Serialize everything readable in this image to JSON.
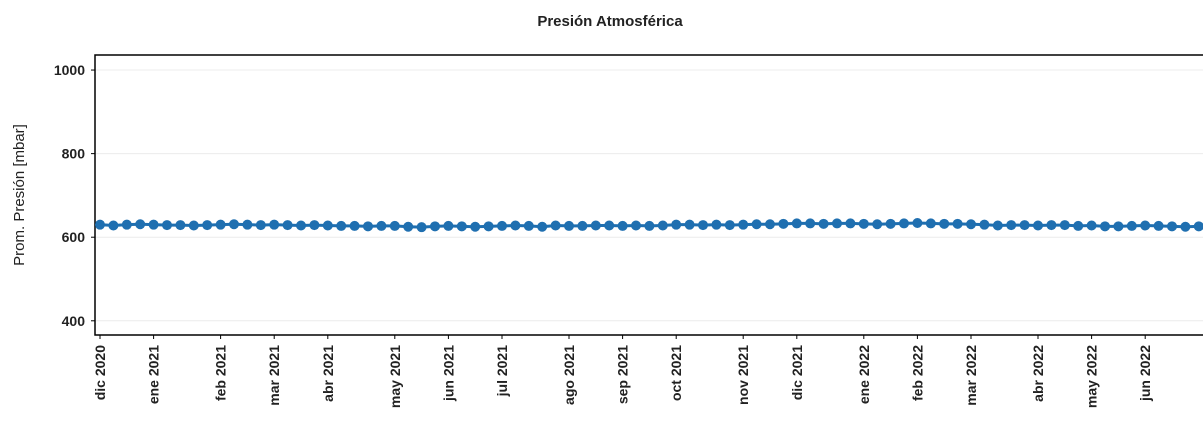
{
  "chart_data": {
    "type": "line",
    "title": "Presión Atmosférica",
    "y_label": "Prom. Presión [mbar]",
    "categories": [
      "dic 2020",
      null,
      null,
      null,
      "ene 2021",
      null,
      null,
      null,
      null,
      "feb 2021",
      null,
      null,
      null,
      "mar 2021",
      null,
      null,
      null,
      "abr 2021",
      null,
      null,
      null,
      null,
      "may 2021",
      null,
      null,
      null,
      "jun 2021",
      null,
      null,
      null,
      "jul 2021",
      null,
      null,
      null,
      null,
      "ago 2021",
      null,
      null,
      null,
      "sep 2021",
      null,
      null,
      null,
      "oct 2021",
      null,
      null,
      null,
      null,
      "nov 2021",
      null,
      null,
      null,
      "dic 2021",
      null,
      null,
      null,
      null,
      "ene 2022",
      null,
      null,
      null,
      "feb 2022",
      null,
      null,
      null,
      "mar 2022",
      null,
      null,
      null,
      null,
      "abr 2022",
      null,
      null,
      null,
      "may 2022",
      null,
      null,
      null,
      "jun 2022",
      null,
      null,
      null,
      null
    ],
    "values": [
      630,
      628,
      630,
      631,
      630,
      629,
      629,
      628,
      629,
      630,
      631,
      630,
      629,
      630,
      629,
      628,
      629,
      628,
      627,
      627,
      626,
      627,
      627,
      625,
      624,
      626,
      627,
      626,
      625,
      626,
      627,
      628,
      627,
      625,
      628,
      627,
      627,
      628,
      628,
      627,
      628,
      627,
      628,
      630,
      630,
      629,
      630,
      629,
      630,
      631,
      631,
      632,
      633,
      633,
      632,
      633,
      633,
      632,
      631,
      632,
      633,
      634,
      633,
      632,
      632,
      631,
      630,
      628,
      629,
      629,
      628,
      629,
      629,
      627,
      628,
      626,
      626,
      627,
      628,
      627,
      626,
      625,
      626
    ],
    "color": "#1f6fb0",
    "ylim": [
      366,
      1036
    ],
    "yticks": [
      400,
      600,
      800,
      1000
    ],
    "grid": true
  }
}
